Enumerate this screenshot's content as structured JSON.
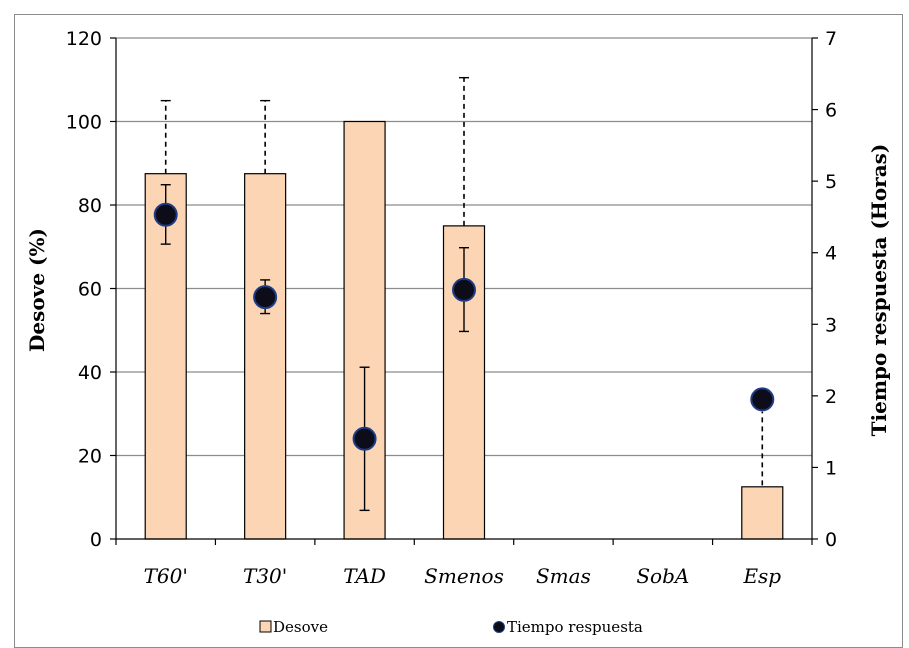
{
  "chart_data": {
    "type": "bar",
    "categories": [
      "T60'",
      "T30'",
      "TAD",
      "Smenos",
      "Smas",
      "SobA",
      "Esp"
    ],
    "y_left": {
      "label": "Desove (%)",
      "ylim": [
        0,
        120
      ],
      "ticks": [
        0,
        20,
        40,
        60,
        80,
        100,
        120
      ]
    },
    "y_right": {
      "label": "Tiempo  respuesta (Horas)",
      "ylim": [
        0,
        7
      ],
      "ticks": [
        0,
        1,
        2,
        3,
        4,
        5,
        6,
        7
      ]
    },
    "grid": true,
    "legend_position": "bottom",
    "series": [
      {
        "name": "Desove",
        "kind": "bar",
        "axis": "left",
        "color": "#fcd5b4",
        "values": [
          87.5,
          87.5,
          100,
          75,
          null,
          null,
          12.5
        ],
        "error_upper": [
          105,
          105,
          null,
          110.5,
          null,
          null,
          null
        ]
      },
      {
        "name": "Tiempo respuesta",
        "kind": "scatter",
        "axis": "right",
        "color": "#0d0d1a",
        "values": [
          4.53,
          3.38,
          1.4,
          3.48,
          null,
          null,
          1.95
        ],
        "error_low": [
          4.12,
          3.15,
          0.4,
          2.9,
          null,
          null,
          null
        ],
        "error_high": [
          4.95,
          3.62,
          2.4,
          4.07,
          null,
          null,
          null
        ]
      }
    ],
    "extra_dashed_segments": [
      {
        "category": "Esp",
        "axis": "right",
        "from": 0.75,
        "to": 1.78
      }
    ]
  }
}
